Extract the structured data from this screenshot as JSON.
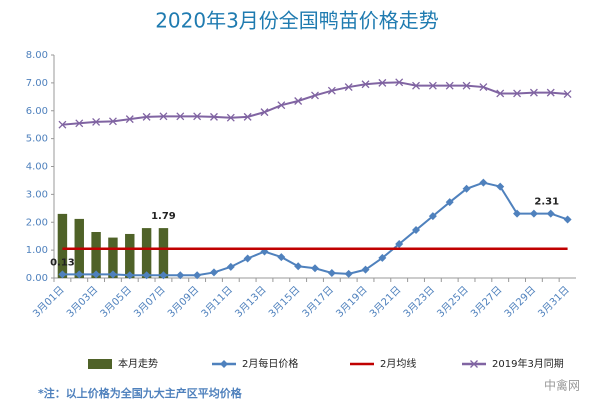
{
  "chart_data": {
    "type": "bar-line",
    "title": "2020年3月份全国鸭苗价格走势",
    "categories": [
      "3月01日",
      null,
      "3月03日",
      null,
      "3月05日",
      null,
      "3月07日",
      null,
      "3月09日",
      null,
      "3月11日",
      null,
      "3月13日",
      null,
      "3月15日",
      null,
      "3月17日",
      null,
      "3月19日",
      null,
      "3月21日",
      null,
      "3月23日",
      null,
      "3月25日",
      null,
      "3月27日",
      null,
      "3月29日",
      null,
      "3月31日"
    ],
    "ylim": [
      0,
      8
    ],
    "yticks": [
      {
        "value": 0,
        "label": "0.00"
      },
      {
        "value": 1,
        "label": "1.00"
      },
      {
        "value": 2,
        "label": "2.00"
      },
      {
        "value": 3,
        "label": "3.00"
      },
      {
        "value": 4,
        "label": "4.00"
      },
      {
        "value": 5,
        "label": "5.00"
      },
      {
        "value": 6,
        "label": "6.00"
      },
      {
        "value": 7,
        "label": "7.00"
      },
      {
        "value": 8,
        "label": "8.00"
      }
    ],
    "grid": false,
    "series": [
      {
        "name": "本月走势",
        "kind": "bar",
        "color": "#4f6228",
        "values": [
          2.3,
          2.12,
          1.65,
          1.45,
          1.58,
          1.79,
          1.79,
          null,
          null,
          null,
          null,
          null,
          null,
          null,
          null,
          null,
          null,
          null,
          null,
          null,
          null,
          null,
          null,
          null,
          null,
          null,
          null,
          null,
          null,
          null,
          null
        ],
        "value_labels": [
          null,
          null,
          null,
          null,
          null,
          null,
          "1.79",
          null,
          null,
          null,
          null,
          null,
          null,
          null,
          null,
          null,
          null,
          null,
          null,
          null,
          null,
          null,
          null,
          null,
          null,
          null,
          null,
          null,
          null,
          null,
          null
        ]
      },
      {
        "name": "2月每日价格",
        "kind": "line",
        "marker": "diamond",
        "color": "#4f81bd",
        "values": [
          0.13,
          0.13,
          0.13,
          0.13,
          0.1,
          0.1,
          0.1,
          0.1,
          0.1,
          0.2,
          0.4,
          0.7,
          0.95,
          0.75,
          0.42,
          0.35,
          0.18,
          0.15,
          0.3,
          0.72,
          1.22,
          1.72,
          2.22,
          2.72,
          3.2,
          3.42,
          3.28,
          2.31,
          2.31,
          2.31,
          2.1
        ],
        "value_labels": [
          "0.13",
          null,
          null,
          null,
          null,
          null,
          null,
          null,
          null,
          null,
          null,
          null,
          null,
          null,
          null,
          null,
          null,
          null,
          null,
          null,
          null,
          null,
          null,
          null,
          null,
          null,
          null,
          null,
          null,
          "2.31",
          null
        ]
      },
      {
        "name": "2月均线",
        "kind": "line",
        "marker": "none",
        "color": "#c00000",
        "values": [
          1.05,
          1.05,
          1.05,
          1.05,
          1.05,
          1.05,
          1.05,
          1.05,
          1.05,
          1.05,
          1.05,
          1.05,
          1.05,
          1.05,
          1.05,
          1.05,
          1.05,
          1.05,
          1.05,
          1.05,
          1.05,
          1.05,
          1.05,
          1.05,
          1.05,
          1.05,
          1.05,
          1.05,
          1.05,
          1.05,
          1.05
        ]
      },
      {
        "name": "2019年3月同期",
        "kind": "line",
        "marker": "x",
        "color": "#8064a2",
        "values": [
          5.5,
          5.55,
          5.6,
          5.62,
          5.7,
          5.78,
          5.8,
          5.8,
          5.8,
          5.78,
          5.75,
          5.78,
          5.95,
          6.2,
          6.35,
          6.55,
          6.72,
          6.85,
          6.95,
          7.0,
          7.02,
          6.9,
          6.9,
          6.9,
          6.9,
          6.85,
          6.62,
          6.62,
          6.65,
          6.65,
          6.6
        ]
      }
    ],
    "note": "*注：以上价格为全国九大主产区平均价格",
    "watermark": "中禽网"
  }
}
